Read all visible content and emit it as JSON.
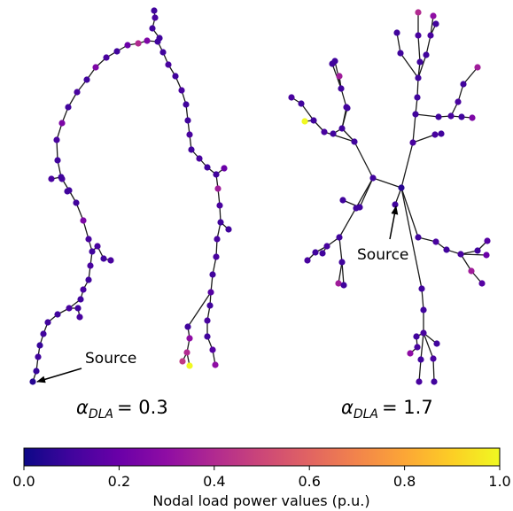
{
  "left_graph": {
    "alpha_symbol": "α",
    "alpha_subscript": "DLA",
    "alpha_value": "= 0.3",
    "source_label": "Source"
  },
  "right_graph": {
    "alpha_symbol": "α",
    "alpha_subscript": "DLA",
    "alpha_value": "= 1.7",
    "source_label": "Source"
  },
  "colorbar": {
    "title": "Nodal load power values (p.u.)",
    "ticks": [
      "0.0",
      "0.2",
      "0.4",
      "0.6",
      "0.8",
      "1.0"
    ],
    "colormap": "plasma",
    "range": [
      0,
      1
    ]
  },
  "colors": {
    "edge": "#1a1a1a",
    "low": "#2a0593",
    "mid": "#b52f8c",
    "high": "#f0f921"
  }
}
